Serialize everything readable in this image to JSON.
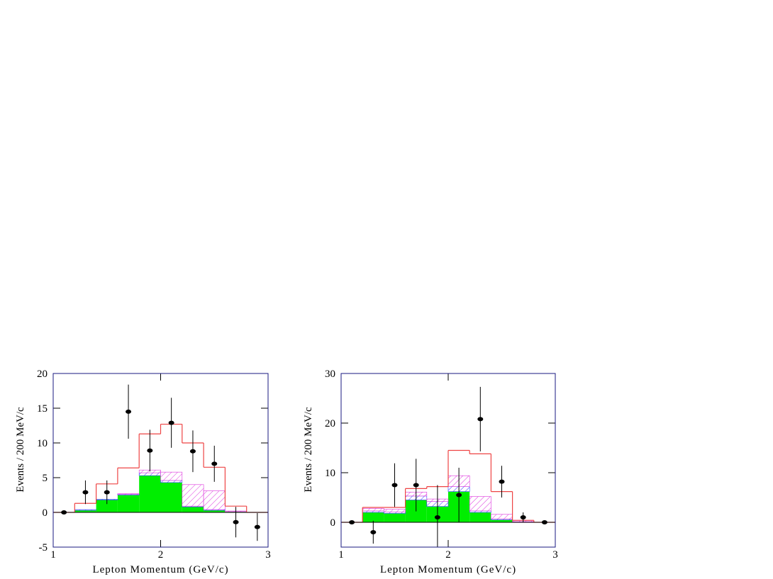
{
  "chart_data": [
    {
      "type": "histogram",
      "xlabel": "Lepton Momentum (GeV/c)",
      "ylabel": "Events / 200 MeV/c",
      "bins": [
        1.0,
        1.2,
        1.4,
        1.6,
        1.8,
        2.0,
        2.2,
        2.4,
        2.6,
        2.8,
        3.0
      ],
      "series": [
        {
          "color": "#00ee00",
          "fill": "solid",
          "values": [
            0,
            0.3,
            1.8,
            2.5,
            5.3,
            4.3,
            0.8,
            0.3,
            0.1,
            0
          ]
        },
        {
          "color": "#3344ff",
          "fill": "hatch",
          "values": [
            0,
            0.1,
            0.1,
            0.1,
            0.4,
            0.3,
            0.1,
            0.1,
            0,
            0
          ]
        },
        {
          "color": "#dd33dd",
          "fill": "hatch",
          "values": [
            0,
            0,
            0,
            0.1,
            0.4,
            1.2,
            3.1,
            2.7,
            0.1,
            0
          ]
        }
      ],
      "total": {
        "color": "#ee4444",
        "values": [
          0,
          1.3,
          4.1,
          6.4,
          11.3,
          12.7,
          10.0,
          6.5,
          0.9,
          0
        ]
      },
      "points": {
        "x": [
          1.1,
          1.3,
          1.5,
          1.7,
          1.9,
          2.1,
          2.3,
          2.5,
          2.7,
          2.9
        ],
        "values": [
          0,
          2.9,
          2.9,
          14.5,
          8.9,
          12.9,
          8.8,
          7.0,
          -1.4,
          -2.1
        ],
        "errors": [
          0,
          1.7,
          1.7,
          3.9,
          3.0,
          3.6,
          3.0,
          2.6,
          2.2,
          2.0
        ]
      },
      "xlim": [
        1,
        3
      ],
      "ylim": [
        -5,
        20
      ],
      "xticks": [
        1,
        2,
        3
      ],
      "yticks": [
        -5,
        0,
        5,
        10,
        15,
        20
      ]
    },
    {
      "type": "histogram",
      "xlabel": "Lepton Momentum (GeV/c)",
      "ylabel": "Events / 200 MeV/c",
      "bins": [
        1.0,
        1.2,
        1.4,
        1.6,
        1.8,
        2.0,
        2.2,
        2.4,
        2.6,
        2.8,
        3.0
      ],
      "series": [
        {
          "color": "#00ee00",
          "fill": "solid",
          "values": [
            0,
            2.0,
            1.8,
            4.5,
            3.2,
            6.2,
            2.0,
            0.5,
            0.1,
            0
          ]
        },
        {
          "color": "#3344ff",
          "fill": "hatch",
          "values": [
            0,
            0.3,
            0.3,
            0.8,
            1.0,
            1.0,
            0.3,
            0.2,
            0,
            0
          ]
        },
        {
          "color": "#dd33dd",
          "fill": "hatch",
          "values": [
            0,
            0.5,
            0.5,
            0.8,
            0.5,
            2.2,
            2.9,
            0.9,
            0.2,
            0
          ]
        }
      ],
      "total": {
        "color": "#ee4444",
        "values": [
          0,
          3.0,
          3.0,
          6.8,
          7.2,
          14.5,
          13.8,
          6.2,
          0.4,
          0
        ]
      },
      "points": {
        "x": [
          1.1,
          1.3,
          1.5,
          1.7,
          1.9,
          2.1,
          2.3,
          2.5,
          2.7,
          2.9
        ],
        "values": [
          0,
          -2.0,
          7.5,
          7.5,
          1.0,
          5.5,
          20.8,
          8.2,
          1.0,
          0
        ],
        "errors": [
          0,
          2.3,
          4.4,
          5.3,
          6.5,
          5.5,
          6.5,
          3.2,
          1.0,
          0
        ]
      },
      "xlim": [
        1,
        3
      ],
      "ylim": [
        -5,
        30
      ],
      "xticks": [
        1,
        2,
        3
      ],
      "yticks": [
        0,
        10,
        20,
        30
      ]
    }
  ]
}
